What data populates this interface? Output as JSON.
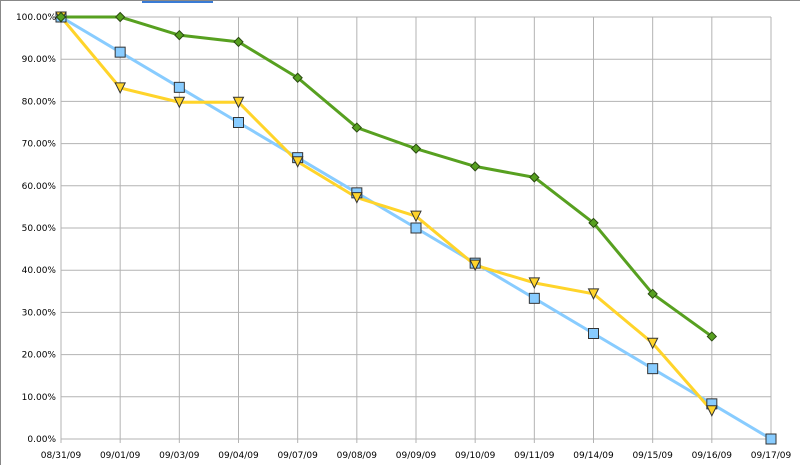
{
  "chart_data": {
    "type": "line",
    "categories": [
      "08/31/09",
      "09/01/09",
      "09/03/09",
      "09/04/09",
      "09/07/09",
      "09/08/09",
      "09/09/09",
      "09/10/09",
      "09/11/09",
      "09/14/09",
      "09/15/09",
      "09/16/09",
      "09/17/09"
    ],
    "ylim": [
      0,
      100
    ],
    "yticks": [
      "0.00%",
      "10.00%",
      "20.00%",
      "30.00%",
      "40.00%",
      "50.00%",
      "60.00%",
      "70.00%",
      "80.00%",
      "90.00%",
      "100.00%"
    ],
    "grid": true,
    "legend": "none",
    "series": [
      {
        "color": "#88ccff",
        "marker": "square",
        "values": [
          100,
          91.67,
          83.33,
          75,
          66.67,
          58.33,
          50,
          41.67,
          33.33,
          25,
          16.67,
          8.33,
          0
        ]
      },
      {
        "color": "#ffd42a",
        "marker": "triangle-down",
        "values": [
          100,
          83.2,
          79.8,
          79.8,
          65.7,
          57.2,
          52.8,
          41.2,
          37,
          34.4,
          22.7,
          6.7,
          null
        ]
      },
      {
        "color": "#57a020",
        "marker": "diamond",
        "values": [
          100,
          100,
          95.7,
          94.1,
          85.6,
          73.8,
          68.8,
          64.6,
          62,
          51.2,
          34.4,
          24.3,
          null
        ]
      }
    ]
  }
}
